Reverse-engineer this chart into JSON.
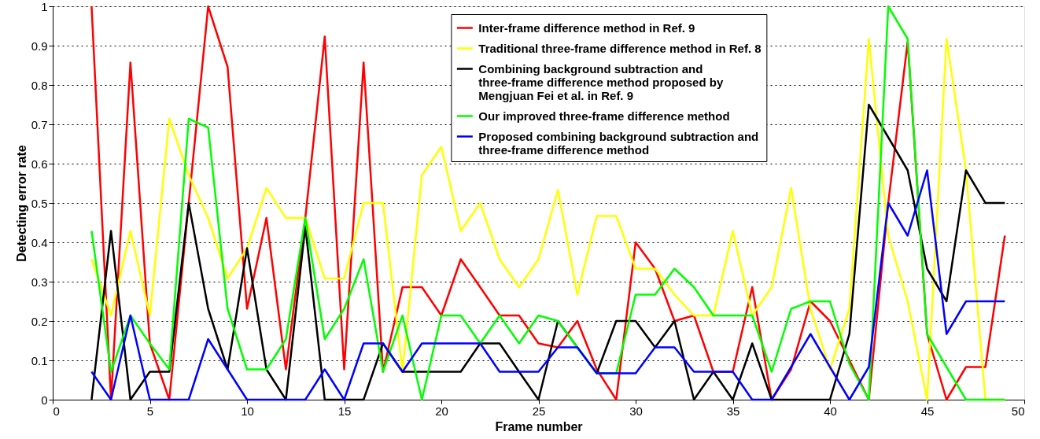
{
  "chart_data": {
    "type": "line",
    "xlabel": "Frame number",
    "ylabel": "Detecting error rate",
    "x": [
      2,
      3,
      4,
      5,
      6,
      7,
      8,
      9,
      10,
      11,
      12,
      13,
      14,
      15,
      16,
      17,
      18,
      19,
      20,
      21,
      22,
      23,
      24,
      25,
      26,
      27,
      28,
      29,
      30,
      31,
      32,
      33,
      34,
      35,
      36,
      37,
      38,
      39,
      40,
      41,
      42,
      43,
      44,
      45,
      46,
      47,
      48,
      49
    ],
    "series": [
      {
        "name": "Inter-frame difference method in Ref. 9",
        "color": "#ff0000",
        "values": [
          1.0,
          0,
          0.857,
          0.143,
          0,
          0.5,
          1.0,
          0.846,
          0.231,
          0.462,
          0.077,
          0.462,
          0.923,
          0.077,
          0.857,
          0.071,
          0.286,
          0.286,
          0.214,
          0.357,
          0.286,
          0.214,
          0.214,
          0.143,
          0.133,
          0.2,
          0.077,
          0,
          0.4,
          0.333,
          0.2,
          0.214,
          0.071,
          0.071,
          0.286,
          0,
          0.077,
          0.25,
          0.2,
          0.1,
          0,
          0.5,
          0.91,
          0.167,
          0,
          0.083,
          0.083,
          0.417
        ]
      },
      {
        "name": "Traditional three-frame difference method in Ref. 8",
        "color": "#ffff00",
        "values": [
          0.357,
          0.214,
          0.429,
          0.214,
          0.714,
          0.571,
          0.462,
          0.308,
          0.385,
          0.538,
          0.462,
          0.462,
          0.308,
          0.308,
          0.5,
          0.5,
          0.071,
          0.571,
          0.643,
          0.429,
          0.5,
          0.357,
          0.286,
          0.357,
          0.533,
          0.267,
          0.467,
          0.467,
          0.333,
          0.333,
          0.267,
          0.214,
          0.214,
          0.429,
          0.214,
          0.286,
          0.538,
          0.231,
          0.077,
          0.231,
          0.917,
          0.417,
          0.25,
          0,
          0.917,
          0.583,
          0,
          0
        ]
      },
      {
        "name": "Combining background subtraction and\nthree-frame difference method proposed by\nMengjuan Fei et al. in Ref. 9",
        "color": "#000000",
        "values": [
          0,
          0.429,
          0,
          0.071,
          0.071,
          0.5,
          0.231,
          0.077,
          0.385,
          0.077,
          0,
          0.44,
          0,
          0,
          0,
          0.143,
          0.071,
          0.071,
          0.071,
          0.071,
          0.143,
          0.143,
          0.071,
          0,
          0.2,
          0.133,
          0.067,
          0.2,
          0.2,
          0.133,
          0.2,
          0,
          0.071,
          0,
          0.143,
          0,
          0,
          0,
          0,
          0.167,
          0.75,
          0.667,
          0.583,
          0.333,
          0.25,
          0.583,
          0.5,
          0.5
        ]
      },
      {
        "name": "Our improved three-frame difference method",
        "color": "#00ff00",
        "values": [
          0.429,
          0.071,
          0.214,
          0.143,
          0.077,
          0.714,
          0.692,
          0.231,
          0.077,
          0.077,
          0.154,
          0.462,
          0.154,
          0.231,
          0.357,
          0.071,
          0.214,
          0,
          0.214,
          0.214,
          0.143,
          0.214,
          0.143,
          0.214,
          0.2,
          0.133,
          0.067,
          0.067,
          0.267,
          0.267,
          0.333,
          0.286,
          0.214,
          0.214,
          0.214,
          0.071,
          0.231,
          0.25,
          0.25,
          0.091,
          0,
          1.0,
          0.917,
          0.167,
          0.083,
          0,
          0,
          0
        ]
      },
      {
        "name": "Proposed combining background subtraction and\nthree-frame difference method",
        "color": "#0000ff",
        "values": [
          0.071,
          0,
          0.214,
          0,
          0,
          0,
          0.154,
          0.077,
          0,
          0,
          0,
          0,
          0.077,
          0,
          0.143,
          0.143,
          0.071,
          0.143,
          0.143,
          0.143,
          0.143,
          0.071,
          0.071,
          0.071,
          0.133,
          0.133,
          0.067,
          0.067,
          0.067,
          0.133,
          0.133,
          0.071,
          0.071,
          0.071,
          0,
          0,
          0.083,
          0.167,
          0.083,
          0,
          0.083,
          0.5,
          0.417,
          0.583,
          0.167,
          0.25,
          0.25,
          0.25
        ]
      }
    ],
    "xlim": [
      0,
      50
    ],
    "xticks": [
      0,
      5,
      10,
      15,
      20,
      25,
      30,
      35,
      40,
      45,
      50
    ],
    "ylim": [
      0,
      1
    ],
    "yticks": [
      0,
      0.1,
      0.2,
      0.3,
      0.4,
      0.5,
      0.6,
      0.7,
      0.8,
      0.9,
      1
    ],
    "grid": "y",
    "legend": "top",
    "line_style": "solid",
    "marker": "none"
  }
}
